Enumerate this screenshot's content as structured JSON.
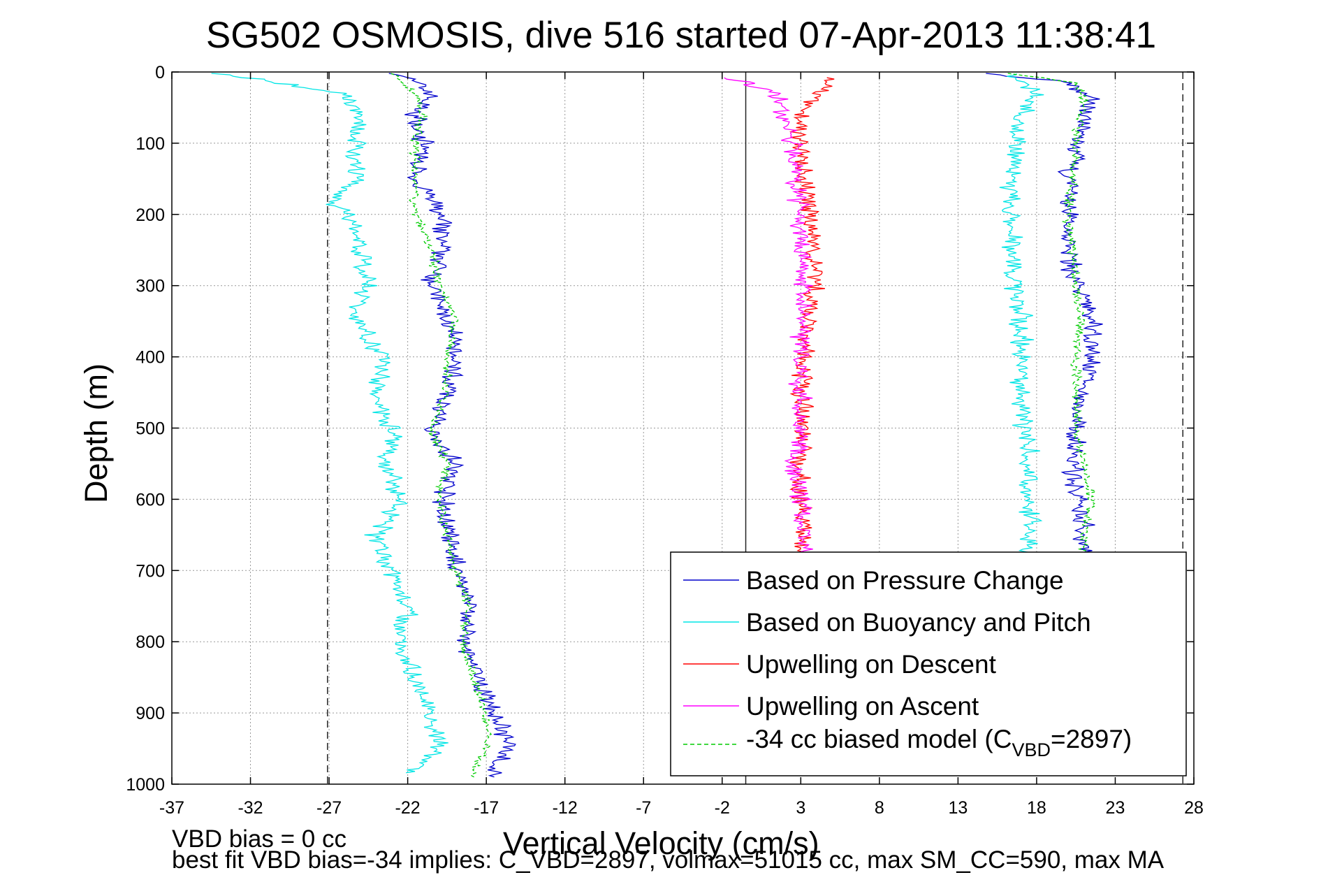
{
  "chart_data": {
    "type": "line",
    "title": "SG502 OSMOSIS, dive 516 started 07-Apr-2013 11:38:41",
    "xlabel": "Vertical Velocity (cm/s)",
    "ylabel": "Depth (m)",
    "xlim": [
      -37,
      28
    ],
    "ylim": [
      1000,
      0
    ],
    "y_reversed": true,
    "grid": true,
    "xticks": [
      -37,
      -32,
      -27,
      -22,
      -17,
      -12,
      -7,
      -2,
      3,
      8,
      13,
      18,
      23,
      28
    ],
    "yticks": [
      0,
      100,
      200,
      300,
      400,
      500,
      600,
      700,
      800,
      900,
      1000
    ],
    "reference_lines": [
      {
        "x": -27.1,
        "style": "dashed"
      },
      {
        "x": 27.3,
        "style": "dashed"
      },
      {
        "x": -0.5,
        "style": "solid"
      }
    ],
    "legend_position": "bottom-right",
    "series": [
      {
        "name": "Based on Pressure Change",
        "color": "#0000cc",
        "style": "solid",
        "branches": [
          {
            "depth": [
              2,
              30,
              60,
              100,
              150,
              200,
              250,
              300,
              350,
              400,
              450,
              500,
              550,
              600,
              650,
              700,
              750,
              800,
              850,
              900,
              950,
              990
            ],
            "v": [
              -22.5,
              -20.5,
              -21.5,
              -21.0,
              -21.5,
              -20.0,
              -19.8,
              -20.5,
              -19.5,
              -19.0,
              -19.5,
              -20.5,
              -19.0,
              -19.8,
              -19.5,
              -18.8,
              -18.0,
              -18.5,
              -17.5,
              -16.5,
              -15.5,
              -17.0
            ]
          },
          {
            "depth": [
              2,
              15,
              40,
              100,
              150,
              200,
              250,
              300,
              350,
              400,
              450,
              500,
              550,
              600,
              650,
              680
            ],
            "v": [
              15.0,
              20.0,
              21.5,
              20.5,
              20.0,
              20.0,
              20.0,
              20.5,
              21.5,
              21.5,
              21.0,
              20.5,
              20.3,
              20.5,
              21.0,
              21.3
            ]
          }
        ]
      },
      {
        "name": "Based on Buoyancy and Pitch",
        "color": "#00e5e5",
        "style": "solid",
        "branches": [
          {
            "depth": [
              2,
              30,
              60,
              100,
              150,
              180,
              200,
              250,
              300,
              340,
              400,
              450,
              500,
              550,
              600,
              650,
              700,
              750,
              800,
              850,
              900,
              950,
              985
            ],
            "v": [
              -34.0,
              -26.0,
              -25.0,
              -25.5,
              -25.0,
              -27.0,
              -25.5,
              -25.0,
              -24.5,
              -25.5,
              -23.5,
              -24.0,
              -23.0,
              -23.5,
              -22.5,
              -24.0,
              -23.0,
              -22.0,
              -22.5,
              -21.5,
              -20.5,
              -20.0,
              -22.0
            ]
          },
          {
            "depth": [
              2,
              30,
              60,
              100,
              150,
              200,
              250,
              300,
              350,
              400,
              450,
              500,
              550,
              600,
              650,
              680
            ],
            "v": [
              16.5,
              18.0,
              17.0,
              16.8,
              16.5,
              16.3,
              16.5,
              16.5,
              17.0,
              17.0,
              17.0,
              17.3,
              17.5,
              17.5,
              17.5,
              17.5
            ]
          }
        ]
      },
      {
        "name": "Upwelling on Descent",
        "color": "#ff0000",
        "style": "solid",
        "branches": [
          {
            "depth": [
              8,
              30,
              60,
              100,
              150,
              200,
              250,
              300,
              350,
              400,
              450,
              500,
              550,
              600,
              650,
              680
            ],
            "v": [
              5.0,
              4.0,
              3.0,
              3.0,
              3.2,
              3.5,
              3.8,
              3.8,
              3.5,
              3.3,
              3.0,
              3.2,
              3.0,
              3.0,
              3.2,
              3.0
            ]
          }
        ]
      },
      {
        "name": "Upwelling on Ascent",
        "color": "#ff00ff",
        "style": "solid",
        "branches": [
          {
            "depth": [
              8,
              30,
              100,
              200,
              300,
              400,
              500,
              550,
              600,
              650,
              680
            ],
            "v": [
              -1.5,
              1.5,
              2.5,
              3.0,
              3.2,
              3.0,
              3.0,
              2.5,
              3.0,
              3.2,
              3.0
            ]
          }
        ]
      },
      {
        "name": "-34 cc biased model (C_VBD=2897)",
        "color": "#00cc00",
        "style": "dashed",
        "branches": [
          {
            "depth": [
              2,
              30,
              60,
              100,
              150,
              200,
              250,
              300,
              350,
              400,
              450,
              500,
              550,
              600,
              650,
              700,
              750,
              800,
              850,
              900,
              950,
              990
            ],
            "v": [
              -23.0,
              -21.5,
              -21.0,
              -21.5,
              -21.5,
              -21.5,
              -20.5,
              -20.0,
              -19.0,
              -19.5,
              -19.5,
              -20.5,
              -19.5,
              -20.0,
              -19.5,
              -19.0,
              -18.0,
              -18.5,
              -17.8,
              -17.0,
              -17.0,
              -18.0
            ]
          },
          {
            "depth": [
              2,
              15,
              40,
              100,
              150,
              200,
              250,
              300,
              350,
              400,
              450,
              500,
              550,
              600,
              650,
              680
            ],
            "v": [
              16.0,
              20.5,
              21.0,
              20.5,
              20.3,
              20.0,
              20.3,
              20.5,
              20.8,
              20.5,
              20.5,
              20.5,
              21.0,
              21.5,
              21.0,
              21.0
            ]
          }
        ]
      }
    ]
  },
  "legend": {
    "items": [
      {
        "label": "Based on Pressure Change",
        "color": "#0000cc"
      },
      {
        "label": "Based on Buoyancy and Pitch",
        "color": "#00e5e5"
      },
      {
        "label": "Upwelling on Descent",
        "color": "#ff0000"
      },
      {
        "label": "Upwelling on Ascent",
        "color": "#ff00ff"
      }
    ],
    "model_prefix": "-34 cc biased model (C",
    "model_sub": "VBD",
    "model_suffix": "=2897)"
  },
  "footer": {
    "line1": "VBD bias = 0 cc",
    "line2": "best fit VBD bias=-34 implies: C_VBD=2897, volmax=51015 cc, max SM_CC=590, max MA"
  }
}
